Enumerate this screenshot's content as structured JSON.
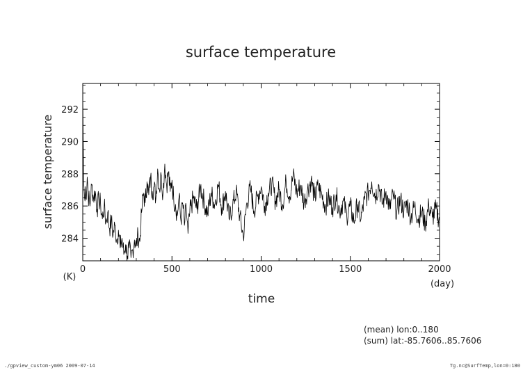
{
  "chart_data": {
    "type": "line",
    "title": "surface temperature",
    "xlabel": "time",
    "x_unit": "(day)",
    "ylabel": "surface temperature",
    "y_unit": "(K)",
    "xlim": [
      0,
      2000
    ],
    "ylim": [
      282.6,
      293.6
    ],
    "x_ticks": [
      0,
      500,
      1000,
      1500,
      2000
    ],
    "y_ticks": [
      284,
      286,
      288,
      290,
      292
    ],
    "x_tick_labels": [
      "0",
      "500",
      "1000",
      "1500",
      "2000"
    ],
    "y_tick_labels": [
      "284",
      "286",
      "288",
      "290",
      "292"
    ],
    "grid": false,
    "legend": "none",
    "line_color": "#000000",
    "series": [
      {
        "x": [
          0,
          5,
          10,
          15,
          20,
          25,
          30,
          40,
          50,
          60,
          70,
          80,
          90,
          100,
          110,
          120,
          130,
          140,
          150,
          160,
          170,
          180,
          190,
          200,
          210,
          220,
          230,
          240,
          250,
          260,
          270,
          280,
          290,
          300,
          310,
          320,
          330,
          340,
          350,
          360,
          370,
          380,
          390,
          400,
          410,
          420,
          430,
          440,
          450,
          460,
          470,
          480,
          490,
          500,
          510,
          520,
          530,
          540,
          550,
          560,
          570,
          580,
          590,
          600,
          620,
          640,
          660,
          680,
          700,
          720,
          740,
          760,
          780,
          800,
          820,
          840,
          860,
          880,
          900,
          920,
          940,
          960,
          980,
          1000,
          1020,
          1040,
          1060,
          1080,
          1100,
          1120,
          1140,
          1160,
          1180,
          1200,
          1220,
          1240,
          1260,
          1280,
          1300,
          1320,
          1340,
          1360,
          1380,
          1400,
          1420,
          1440,
          1460,
          1480,
          1500,
          1520,
          1540,
          1560,
          1580,
          1600,
          1620,
          1640,
          1660,
          1680,
          1700,
          1720,
          1740,
          1760,
          1780,
          1800,
          1820,
          1840,
          1860,
          1880,
          1900,
          1920,
          1940,
          1960,
          1980,
          2000
        ],
        "y": [
          293.0,
          287.5,
          286.5,
          287.2,
          286.4,
          287.8,
          286.8,
          286.0,
          287.3,
          286.5,
          286.9,
          285.8,
          286.4,
          286.1,
          285.2,
          286.0,
          285.0,
          285.6,
          284.6,
          285.1,
          284.2,
          284.8,
          283.9,
          284.5,
          283.4,
          284.0,
          283.0,
          283.6,
          282.9,
          283.4,
          282.8,
          283.3,
          283.9,
          283.5,
          284.2,
          283.8,
          285.6,
          286.8,
          286.2,
          287.5,
          286.7,
          287.8,
          286.9,
          287.2,
          286.5,
          288.3,
          287.0,
          287.9,
          286.8,
          288.6,
          287.3,
          288.1,
          286.9,
          287.6,
          286.4,
          286.1,
          285.4,
          286.6,
          285.1,
          286.2,
          284.8,
          285.9,
          284.3,
          285.6,
          286.5,
          285.8,
          287.2,
          286.3,
          285.5,
          286.8,
          286.1,
          287.3,
          285.9,
          286.9,
          285.2,
          286.0,
          286.9,
          285.4,
          284.1,
          286.2,
          287.1,
          285.7,
          286.6,
          287.2,
          286.0,
          286.8,
          287.4,
          286.3,
          287.0,
          286.1,
          287.5,
          286.6,
          287.9,
          286.8,
          287.3,
          286.2,
          287.0,
          287.6,
          286.5,
          287.2,
          286.7,
          286.0,
          286.5,
          285.9,
          286.7,
          285.7,
          286.3,
          285.4,
          286.0,
          285.0,
          286.1,
          285.2,
          286.4,
          286.8,
          287.5,
          286.6,
          287.3,
          286.1,
          286.9,
          285.8,
          286.7,
          285.6,
          286.4,
          285.7,
          286.2,
          285.3,
          286.0,
          285.2,
          285.6,
          284.9,
          286.0,
          285.3,
          285.8,
          285.1
        ]
      }
    ]
  },
  "aggregation": {
    "mean_label": "(mean) lon:0..180",
    "sum_label": "(sum) lat:-85.7606..85.7606"
  },
  "footer": {
    "left": "./gpview_custom-ym06  2009-07-14",
    "right": "Tg.nc@SurfTemp,lon=0:180"
  }
}
